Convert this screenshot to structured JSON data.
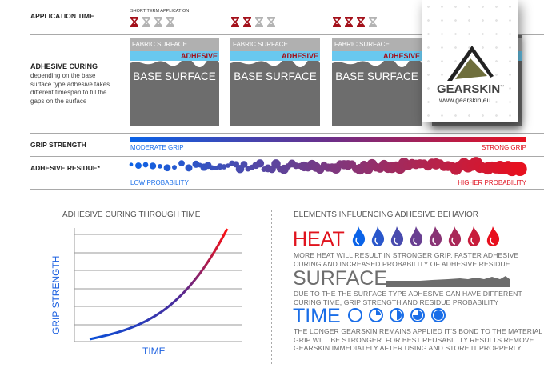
{
  "rows": {
    "application_time": "APPLICATION TIME",
    "short_term": "SHORT TERM APPLICATION",
    "adhesive_curing_title": "ADHESIVE CURING",
    "adhesive_curing_desc": "depending on the base surface type adhesive takes different timespan to fill the gaps on the surface",
    "grip_strength": "GRIP STRENGTH",
    "adhesive_residue": "ADHESIVE RESIDUE*"
  },
  "columns": [
    {
      "hourglasses_filled": 1,
      "hourglasses_total": 4,
      "fabric": "FABRIC  SURFACE",
      "adhesive": "ADHESIVE",
      "base": "BASE SURFACE"
    },
    {
      "hourglasses_filled": 2,
      "hourglasses_total": 4,
      "fabric": "FABRIC  SURFACE",
      "adhesive": "ADHESIVE",
      "base": "BASE SURFACE"
    },
    {
      "hourglasses_filled": 3,
      "hourglasses_total": 4,
      "fabric": "FABRIC  SURFACE",
      "adhesive": "ADHESIVE",
      "base": "BASE SURFACE"
    }
  ],
  "grip": {
    "low": "MODERATE GRIP",
    "high": "STRONG GRIP"
  },
  "residue": {
    "low": "LOW PROBABILITY",
    "high": "HIGHER PROBABILITY"
  },
  "colors": {
    "blue": "#0a5ce8",
    "red": "#e8101e",
    "dark_red": "#a3101a",
    "gray": "#6d6d6d",
    "adhesive": "#69c8ef"
  },
  "logo": {
    "brand": "GEARSKIN",
    "tm": "™",
    "url": "www.gearskin.eu"
  },
  "curve_chart": {
    "title": "ADHESIVE CURING THROUGH TIME",
    "ylabel": "GRIP STRENGTH",
    "xlabel": "TIME"
  },
  "elements": {
    "title": "ELEMENTS INFLUENCING ADHESIVE BEHAVIOR",
    "heat": {
      "label": "HEAT",
      "desc": "MORE HEAT WILL RESULT IN STRONGER GRIP, FASTER ADHESIVE CURING AND INCREASED PROBABILITY OF ADHESIVE RESIDUE",
      "icon": "flame-icon"
    },
    "surface": {
      "label": "SURFACE",
      "desc": "DUE TO THE THE SURFACE TYPE ADHESIVE CAN HAVE DIFFERENT CURING TIME, GRIP STRENGTH AND RESIDUE PROBABILITY"
    },
    "time": {
      "label": "TIME",
      "desc": "THE LONGER GEARSKIN REMAINS APPLIED IT'S BOND TO THE MATERIAL GRIP WILL BE STRONGER. FOR BEST REUSABILITY RESULTS REMOVE GEARSKIN IMMEDIATELY AFTER USING AND STORE IT PROPPERLY",
      "icon": "clock-icon",
      "clock_fill": [
        0,
        0.25,
        0.5,
        0.75,
        1
      ]
    }
  }
}
